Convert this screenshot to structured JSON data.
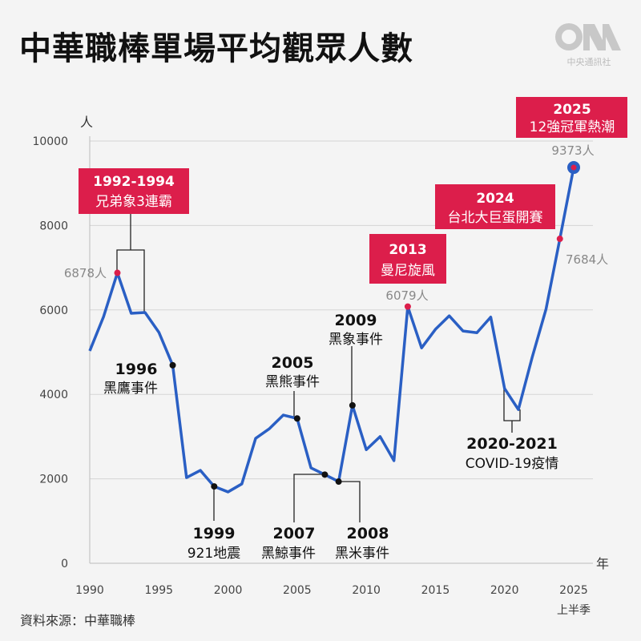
{
  "title": "中華職棒單場平均觀眾人數",
  "logo": {
    "text": "CNA",
    "subtitle": "中央通訊社"
  },
  "source": "資料來源：中華職棒",
  "colors": {
    "line": "#2a5fc4",
    "accent": "#dc1e4b",
    "grid": "#d5d5d5",
    "text": "#111111",
    "muted": "#888888"
  },
  "chart_data": {
    "type": "line",
    "title": "中華職棒單場平均觀眾人數",
    "ylabel": "人",
    "xlabel": "年",
    "xlim": [
      1990,
      2025
    ],
    "ylim": [
      0,
      10000
    ],
    "grid": true,
    "x_ticks": [
      "1990",
      "1995",
      "2000",
      "2005",
      "2010",
      "2015",
      "2020",
      "2025"
    ],
    "x_tick_note": "上半季",
    "y_ticks": [
      "0",
      "2000",
      "4000",
      "6000",
      "8000",
      "10000"
    ],
    "x": [
      1990,
      1991,
      1992,
      1993,
      1994,
      1995,
      1996,
      1997,
      1998,
      1999,
      2000,
      2001,
      2002,
      2003,
      2004,
      2005,
      2006,
      2007,
      2008,
      2009,
      2010,
      2011,
      2012,
      2013,
      2014,
      2015,
      2016,
      2017,
      2018,
      2019,
      2020,
      2021,
      2022,
      2023,
      2024,
      2025
    ],
    "values": [
      5030,
      5840,
      6878,
      5920,
      5940,
      5470,
      4690,
      2030,
      2200,
      1820,
      1690,
      1880,
      2960,
      3190,
      3510,
      3430,
      2260,
      2100,
      1935,
      3740,
      2690,
      3000,
      2430,
      6079,
      5100,
      5540,
      5860,
      5500,
      5460,
      5830,
      4140,
      3640,
      4880,
      6020,
      7684,
      9373
    ],
    "value_labels": {
      "1992": "6878人",
      "2013": "6079人",
      "2024": "7684人",
      "2025": "9373人"
    },
    "annotations": {
      "a1992": {
        "year": "1992-1994",
        "text": "兄弟象3連霸"
      },
      "a1996": {
        "year": "1996",
        "text": "黑鷹事件"
      },
      "a1999": {
        "year": "1999",
        "text": "921地震"
      },
      "a2005": {
        "year": "2005",
        "text": "黑熊事件"
      },
      "a2007": {
        "year": "2007",
        "text": "黑鯨事件"
      },
      "a2008": {
        "year": "2008",
        "text": "黑米事件"
      },
      "a2009": {
        "year": "2009",
        "text": "黑象事件"
      },
      "a2013": {
        "year": "2013",
        "text": "曼尼旋風"
      },
      "a2020": {
        "year": "2020-2021",
        "text": "COVID-19疫情"
      },
      "a2024": {
        "year": "2024",
        "text": "台北大巨蛋開賽"
      },
      "a2025": {
        "year": "2025",
        "text": "12強冠軍熱潮"
      }
    }
  }
}
